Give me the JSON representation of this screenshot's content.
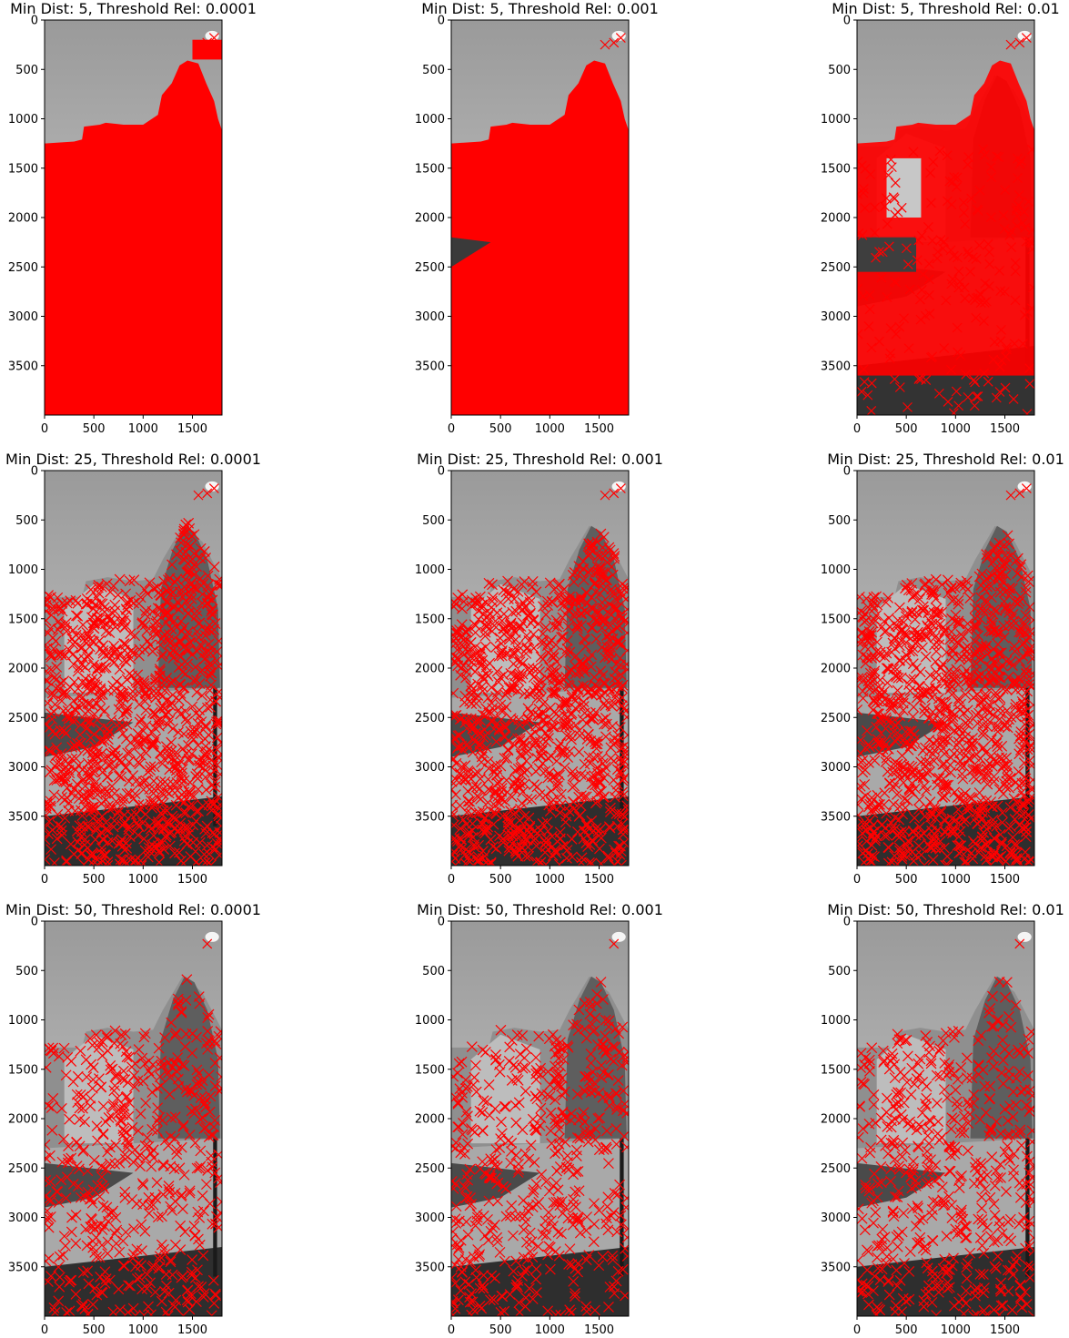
{
  "figure": {
    "colors": {
      "marker": "#ff0000",
      "axis": "#000000",
      "sky_top": "#9a9a9a",
      "sky_bottom": "#cfcfcf",
      "ground": "#2e2e2e",
      "building": "#8f8f8f"
    },
    "marker": "x"
  },
  "chart_data": [
    {
      "type": "scatter",
      "title": "Min Dist: 5, Threshold Rel: 0.0001",
      "xlim": [
        0,
        1800
      ],
      "ylim": [
        4000,
        0
      ],
      "xticks": [
        "0",
        "500",
        "1000",
        "1500"
      ],
      "yticks": [
        "0",
        "500",
        "1000",
        "1500",
        "2000",
        "2500",
        "3000",
        "3500"
      ],
      "coverage": "dense-solid"
    },
    {
      "type": "scatter",
      "title": "Min Dist: 5, Threshold Rel: 0.001",
      "xlim": [
        0,
        1800
      ],
      "ylim": [
        4000,
        0
      ],
      "xticks": [
        "0",
        "500",
        "1000",
        "1500"
      ],
      "yticks": [
        "0",
        "500",
        "1000",
        "1500",
        "2000",
        "2500",
        "3000",
        "3500"
      ],
      "coverage": "dense-solid"
    },
    {
      "type": "scatter",
      "title": "Min Dist: 5, Threshold Rel: 0.01",
      "xlim": [
        0,
        1800
      ],
      "ylim": [
        4000,
        0
      ],
      "xticks": [
        "0",
        "500",
        "1000",
        "1500"
      ],
      "yticks": [
        "0",
        "500",
        "1000",
        "1500",
        "2000",
        "2500",
        "3000",
        "3500"
      ],
      "coverage": "dense-partial"
    },
    {
      "type": "scatter",
      "title": "Min Dist: 25, Threshold Rel: 0.0001",
      "xlim": [
        0,
        1800
      ],
      "ylim": [
        4000,
        0
      ],
      "xticks": [
        "0",
        "500",
        "1000",
        "1500"
      ],
      "yticks": [
        "0",
        "500",
        "1000",
        "1500",
        "2000",
        "2500",
        "3000",
        "3500"
      ],
      "min_dist": 25
    },
    {
      "type": "scatter",
      "title": "Min Dist: 25, Threshold Rel: 0.001",
      "xlim": [
        0,
        1800
      ],
      "ylim": [
        4000,
        0
      ],
      "xticks": [
        "0",
        "500",
        "1000",
        "1500"
      ],
      "yticks": [
        "0",
        "500",
        "1000",
        "1500",
        "2000",
        "2500",
        "3000",
        "3500"
      ],
      "min_dist": 25
    },
    {
      "type": "scatter",
      "title": "Min Dist: 25, Threshold Rel: 0.01",
      "xlim": [
        0,
        1800
      ],
      "ylim": [
        4000,
        0
      ],
      "xticks": [
        "0",
        "500",
        "1000",
        "1500"
      ],
      "yticks": [
        "0",
        "500",
        "1000",
        "1500",
        "2000",
        "2500",
        "3000",
        "3500"
      ],
      "min_dist": 25
    },
    {
      "type": "scatter",
      "title": "Min Dist: 50, Threshold Rel: 0.0001",
      "xlim": [
        0,
        1800
      ],
      "ylim": [
        4000,
        0
      ],
      "xticks": [
        "0",
        "500",
        "1000",
        "1500"
      ],
      "yticks": [
        "0",
        "500",
        "1000",
        "1500",
        "2000",
        "2500",
        "3000",
        "3500"
      ],
      "min_dist": 50
    },
    {
      "type": "scatter",
      "title": "Min Dist: 50, Threshold Rel: 0.001",
      "xlim": [
        0,
        1800
      ],
      "ylim": [
        4000,
        0
      ],
      "xticks": [
        "0",
        "500",
        "1000",
        "1500"
      ],
      "yticks": [
        "0",
        "500",
        "1000",
        "1500",
        "2000",
        "2500",
        "3000",
        "3500"
      ],
      "min_dist": 50
    },
    {
      "type": "scatter",
      "title": "Min Dist: 50, Threshold Rel: 0.01",
      "xlim": [
        0,
        1800
      ],
      "ylim": [
        4000,
        0
      ],
      "xticks": [
        "0",
        "500",
        "1000",
        "1500"
      ],
      "yticks": [
        "0",
        "500",
        "1000",
        "1500",
        "2000",
        "2500",
        "3000",
        "3500"
      ],
      "min_dist": 50
    }
  ]
}
